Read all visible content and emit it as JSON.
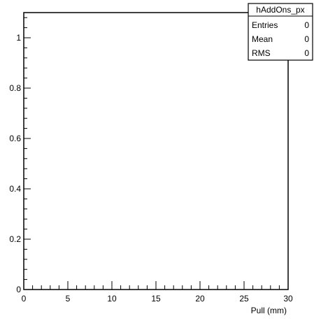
{
  "chart_data": {
    "type": "bar",
    "title": "",
    "xlabel": "Pull (mm)",
    "ylabel": "",
    "xlim": [
      0,
      30
    ],
    "ylim": [
      0,
      1.1
    ],
    "x_major_ticks": [
      0,
      5,
      10,
      15,
      20,
      25,
      30
    ],
    "x_tick_labels": [
      "0",
      "5",
      "10",
      "15",
      "20",
      "25",
      "30"
    ],
    "y_major_ticks": [
      0,
      0.2,
      0.4,
      0.6,
      0.8,
      1
    ],
    "y_tick_labels": [
      "0",
      "0.2",
      "0.4",
      "0.6",
      "0.8",
      "1"
    ],
    "grid": false,
    "series": [
      {
        "name": "hAddOns_px",
        "x": [],
        "values": []
      }
    ],
    "stats_box": {
      "title": "hAddOns_px",
      "rows": [
        {
          "label": "Entries",
          "value": "0"
        },
        {
          "label": "Mean",
          "value": "0"
        },
        {
          "label": "RMS",
          "value": "0"
        }
      ]
    }
  }
}
